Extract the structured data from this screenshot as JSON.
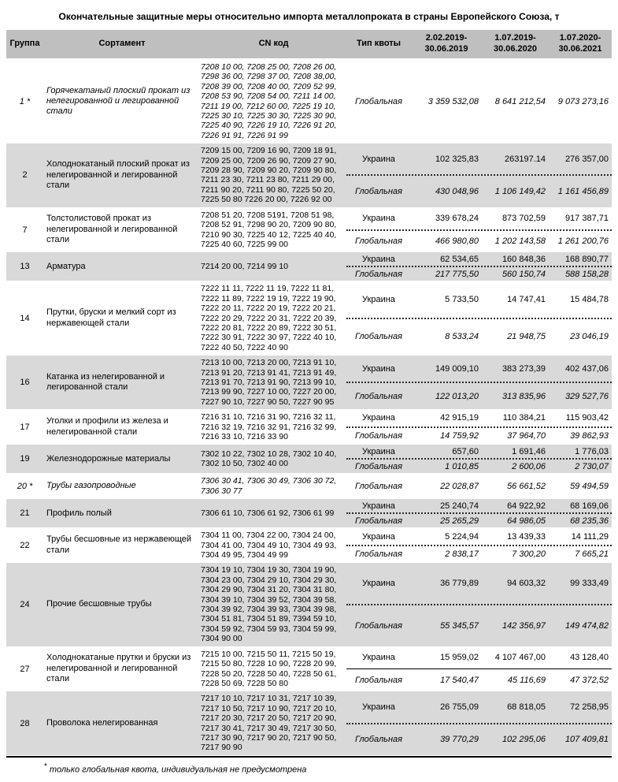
{
  "title": "Окончательные защитные меры относительно импорта металлопроката в страны Европейского Союза, т",
  "colors": {
    "header_bg": "#bfbfbf",
    "shaded_row_bg": "#d9d9d9",
    "text": "#000000"
  },
  "footnote": {
    "marker": "*",
    "text": "только глобальная квота, индивидуальная не предусмотрена"
  },
  "table": {
    "headers": {
      "group": "Группа",
      "name": "Сортамент",
      "cn": "CN код",
      "quota_type": "Тип квоты",
      "periods": [
        "2.02.2019-\n30.06.2019",
        "1.07.2019-\n30.06.2020",
        "1.07.2020-\n30.06.2021"
      ]
    },
    "rows": [
      {
        "group": "1 *",
        "name": "Горячекатаный плоский прокат из нелегированной и легированной стали",
        "cn": "7208 10 00, 7208 25 00, 7208 26 00,\n7298 36 00, 7298 37 00, 7208 38,00,\n7208 39 00, 7208 40 00, 7209 52 99,\n7208 53 90, 7208 54 00, 7211 14 00,\n7211 19 00, 7212 60 00, 7225 19 10,\n7225 30 10, 7225 30 30, 7225 30 90,\n7225 40 90, 7226 19 10, 7226 91 20,\n7226 91 91, 7226 91 99",
        "italic": true,
        "shaded": false,
        "divider": "dotted",
        "quotas": [
          {
            "type": "Глобальная",
            "italic": true,
            "values": [
              "3 359 532,08",
              "8 641 212,54",
              "9 073 273,16"
            ]
          }
        ]
      },
      {
        "group": "2",
        "name": "Холоднокатаный плоский прокат из нелегированной и легированной стали",
        "cn": "7209 15 00, 7209 16 90, 7209 18 91,\n7209 25 00, 7209 26 90, 7209 27 90,\n7209 28 90, 7209 90 20, 7209 90 80,\n7211 23 30, 7211 23 80, 7211 29 00,\n7211 90 20, 7211 90 80, 7225 50 20,\n7225 50 80 7226 20 00, 7226 92 00",
        "italic": false,
        "shaded": true,
        "divider": "dotted",
        "quotas": [
          {
            "type": "Украина",
            "italic": false,
            "values": [
              "102 325,83",
              "263197.14",
              "276 357,00"
            ]
          },
          {
            "type": "Глобальная",
            "italic": true,
            "values": [
              "430 048,96",
              "1 106 149,42",
              "1 161 456,89"
            ]
          }
        ]
      },
      {
        "group": "7",
        "name": "Толстолистовой прокат из нелегированной и легированной стали",
        "cn": "7208 51 20, 7208 5191, 7208 51 98,\n7208 52 91, 7298 90 20, 7209 90 80,\n7210 90 30, 7225 40 12, 7225 40 40,\n7225 40 60, 7225 99 00",
        "italic": false,
        "shaded": false,
        "divider": "dotted",
        "quotas": [
          {
            "type": "Украина",
            "italic": false,
            "values": [
              "339 678,24",
              "873 702,59",
              "917 387,71"
            ]
          },
          {
            "type": "Глобальная",
            "italic": true,
            "values": [
              "466 980,80",
              "1 202 143,58",
              "1 261 200,76"
            ]
          }
        ]
      },
      {
        "group": "13",
        "name": "Арматура",
        "cn": "7214 20 00, 7214 99 10",
        "italic": false,
        "shaded": true,
        "divider": "dotted",
        "quotas": [
          {
            "type": "Украина",
            "italic": false,
            "values": [
              "62 534,65",
              "160 848,36",
              "168 890,77"
            ]
          },
          {
            "type": "Глобальная",
            "italic": true,
            "values": [
              "217 775,50",
              "560 150,74",
              "588 158,28"
            ]
          }
        ]
      },
      {
        "group": "14",
        "name": "Прутки, бруски и мелкий сорт из нержавеющей стали",
        "cn": "7222 11 11, 7222 11 19, 7222 11 81,\n7222 11 89, 7222 19 19, 7222 19 90,\n7222 20 11, 7222 20 19, 7222 20 21,\n7222 20 29, 7222 20 31, 7222 20 39,\n7222 20 81, 7222 20 89, 7222 30 51,\n7222 30 91, 7222 30 97, 7222 40 10,\n7222 40 50, 7222 40 90",
        "italic": false,
        "shaded": false,
        "divider": "dotted",
        "quotas": [
          {
            "type": "Украина",
            "italic": false,
            "values": [
              "5 733,50",
              "14 747,41",
              "15 484,78"
            ]
          },
          {
            "type": "Глобальная",
            "italic": true,
            "values": [
              "8 533,24",
              "21 948,75",
              "23 046,19"
            ]
          }
        ]
      },
      {
        "group": "16",
        "name": "Катанка из нелегированной и легированной стали",
        "cn": "7213 10 00, 7213 20 00, 7213 91 10,\n7213 91 20, 7213 91 41, 7213 91 49,\n7213 91 70, 7213 91 90, 7213 99 10,\n7213 99 90, 7227 10 00, 7227 20 00,\n7227 90 10, 7227 90 50, 7227 90 95",
        "italic": false,
        "shaded": true,
        "divider": "dotted",
        "quotas": [
          {
            "type": "Украина",
            "italic": false,
            "values": [
              "149 009,10",
              "383 273,39",
              "402 437,06"
            ]
          },
          {
            "type": "Глобальная",
            "italic": true,
            "values": [
              "122 013,20",
              "313 835,96",
              "329 527,76"
            ]
          }
        ]
      },
      {
        "group": "17",
        "name": "Уголки и профили из железа и нелегированной стали",
        "cn": "7216 31 10, 7216 31 90, 7216 32 11,\n7216 32 19, 7216 32 91, 7216 32 99,\n7216 33 10, 7216 33 90",
        "italic": false,
        "shaded": false,
        "divider": "dotted",
        "quotas": [
          {
            "type": "Украина",
            "italic": false,
            "values": [
              "42 915,19",
              "110 384,21",
              "115 903,42"
            ]
          },
          {
            "type": "Глобальная",
            "italic": true,
            "values": [
              "14 759,92",
              "37 964,70",
              "39 862,93"
            ]
          }
        ]
      },
      {
        "group": "19",
        "name": "Железнодорожные материалы",
        "cn": "7302 10 22, 7302 10 28, 7302 10 40,\n7302 10 50, 7302 40 00",
        "italic": false,
        "shaded": true,
        "divider": "dotted",
        "quotas": [
          {
            "type": "Украина",
            "italic": false,
            "values": [
              "657,60",
              "1 691,46",
              "1 776,03"
            ]
          },
          {
            "type": "Глобальная",
            "italic": true,
            "values": [
              "1 010,85",
              "2 600,06",
              "2 730,07"
            ]
          }
        ]
      },
      {
        "group": "20 *",
        "name": "Трубы газопроводные",
        "cn": "7306 30 41, 7306 30 49, 7306 30 72,\n7306 30 77",
        "italic": true,
        "shaded": false,
        "divider": "dotted",
        "quotas": [
          {
            "type": "Глобальная",
            "italic": true,
            "values": [
              "22 028,87",
              "56 661,52",
              "59 494,59"
            ]
          }
        ]
      },
      {
        "group": "21",
        "name": "Профиль полый",
        "cn": "7306 61 10, 7306 61 92, 7306 61 99",
        "italic": false,
        "shaded": true,
        "divider": "dotted",
        "quotas": [
          {
            "type": "Украина",
            "italic": false,
            "values": [
              "25 240,74",
              "64 922,92",
              "68 169,06"
            ]
          },
          {
            "type": "Глобальная",
            "italic": true,
            "values": [
              "25 265,29",
              "64 986,05",
              "68 235,36"
            ]
          }
        ]
      },
      {
        "group": "22",
        "name": "Трубы бесшовные из нержавеющей стали",
        "cn": "7304 11 00, 7304 22 00, 7304 24 00,\n7304 41 00, 7304 49 10, 7304 49 93,\n7304 49 95, 7304 49 99",
        "italic": false,
        "shaded": false,
        "divider": "dotted",
        "quotas": [
          {
            "type": "Украина",
            "italic": false,
            "values": [
              "5 224,94",
              "13 439,33",
              "14 111,29"
            ]
          },
          {
            "type": "Глобальная",
            "italic": true,
            "values": [
              "2 838,17",
              "7 300,20",
              "7 665,21"
            ]
          }
        ]
      },
      {
        "group": "24",
        "name": "Прочие бесшовные трубы",
        "cn": "7304 19 10, 7304 19 30, 7304 19 90,\n7304 23 00, 7304 29 10, 7304 29 30,\n7304 29 90, 7304 31 20, 7304 31 80,\n7304 39 10, 7304 39 52, 7304 39 58,\n7304 39 92, 7304 39 93, 7304 39 98,\n7304 51 81, 7304 51 89, 7394 59 10,\n7304 59 92, 7304 59 93, 7304 59 99,\n7304 90 00",
        "italic": false,
        "shaded": true,
        "divider": "dotted",
        "quotas": [
          {
            "type": "Украина",
            "italic": false,
            "values": [
              "36 779,89",
              "94 603,32",
              "99 333,49"
            ]
          },
          {
            "type": "Глобальная",
            "italic": true,
            "values": [
              "55 345,57",
              "142 356,97",
              "149 474,82"
            ]
          }
        ]
      },
      {
        "group": "27",
        "name": "Холоднокатаные прутки и бруски из нелегированной и легированной стали",
        "cn": "7215 10 00, 7215 50 11, 7215 50 19,\n7215 50 80, 7228 10 90, 7228 20 99,\n7228 50 20, 7228 50 40, 7228 50 61,\n7228 50 69, 7228 50 80",
        "italic": false,
        "shaded": false,
        "divider": "solid",
        "quotas": [
          {
            "type": "Украина",
            "italic": false,
            "values": [
              "15 959,02",
              "4 107 467,00",
              "43 128,40"
            ]
          },
          {
            "type": "Глобальная",
            "italic": true,
            "values": [
              "17 540,47",
              "45 116,69",
              "47 372,52"
            ]
          }
        ]
      },
      {
        "group": "28",
        "name": "Проволока нелегированная",
        "cn": "7217 10 10, 7217 10 31, 7217 10 39,\n7217 10 50, 7217 10 90, 7217 20 10,\n7217 20 30, 7217 20 50, 7217 20 90,\n7217 30 41, 7217 30 49, 7217 30 50,\n7217 30 90, 7217 90 20, 7217 90 50,\n7217 90 90",
        "italic": false,
        "shaded": true,
        "divider": "dotted",
        "quotas": [
          {
            "type": "Украина",
            "italic": false,
            "values": [
              "26 755,09",
              "68 818,05",
              "72 258,95"
            ]
          },
          {
            "type": "Глобальная",
            "italic": true,
            "values": [
              "39 770,29",
              "102 295,06",
              "107 409,81"
            ]
          }
        ]
      }
    ]
  }
}
